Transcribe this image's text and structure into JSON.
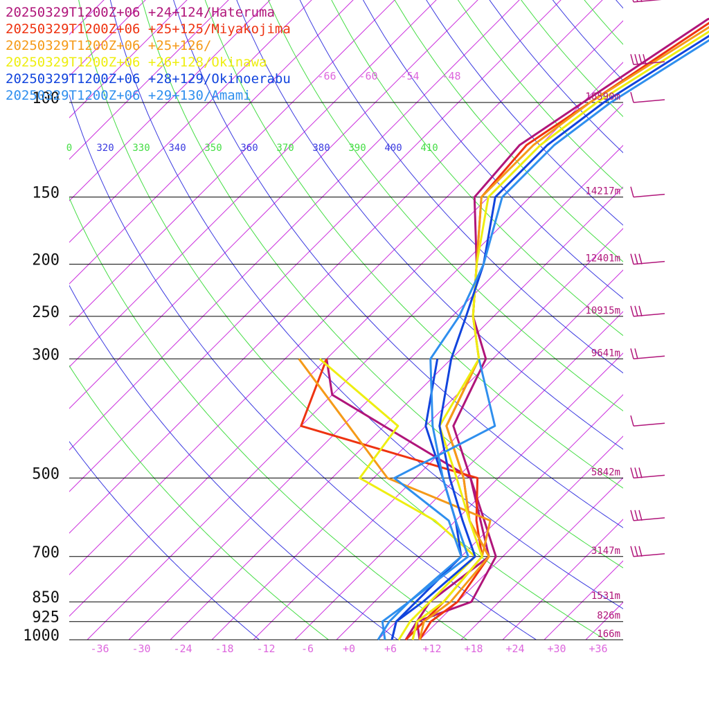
{
  "chart_data": {
    "type": "skew-t log-p sounding",
    "pressure_levels": [
      {
        "p": 100,
        "label": "100",
        "height": "16590m"
      },
      {
        "p": 150,
        "label": "150",
        "height": "14217m"
      },
      {
        "p": 200,
        "label": "200",
        "height": "12401m"
      },
      {
        "p": 250,
        "label": "250",
        "height": "10915m"
      },
      {
        "p": 300,
        "label": "300",
        "height": "9641m"
      },
      {
        "p": 500,
        "label": "500",
        "height": "5842m"
      },
      {
        "p": 700,
        "label": "700",
        "height": "3147m"
      },
      {
        "p": 850,
        "label": "850",
        "height": "1531m"
      },
      {
        "p": 925,
        "label": "925",
        "height": "826m"
      },
      {
        "p": 1000,
        "label": "1000",
        "height": "166m"
      }
    ],
    "temperature_ticks": [
      "-36",
      "-30",
      "-24",
      "-18",
      "-12",
      "-6",
      "+0",
      "+6",
      "+12",
      "+18",
      "+24",
      "+30",
      "+36"
    ],
    "upper_ticks": [
      "-66",
      "-60",
      "-54",
      "-48"
    ],
    "theta_labels": [
      "0",
      "320",
      "330",
      "340",
      "350",
      "360",
      "370",
      "380",
      "390",
      "400",
      "410"
    ],
    "series": [
      {
        "name": "20250329T1200Z+06 +24+124/Hateruma",
        "color": "#b0157a",
        "temperature": [
          [
            50,
            -17
          ],
          [
            70,
            -38
          ],
          [
            100,
            -44
          ],
          [
            120,
            -47
          ],
          [
            150,
            -46
          ],
          [
            200,
            -36
          ],
          [
            250,
            -29
          ],
          [
            300,
            -21
          ],
          [
            400,
            -16
          ],
          [
            500,
            -6
          ],
          [
            700,
            9
          ],
          [
            850,
            12
          ],
          [
            925,
            7
          ],
          [
            1000,
            10
          ]
        ],
        "dewpoint": [
          [
            300,
            -44
          ],
          [
            350,
            -38
          ],
          [
            500,
            -6
          ],
          [
            700,
            8
          ],
          [
            850,
            6
          ],
          [
            925,
            7
          ],
          [
            1000,
            8
          ]
        ]
      },
      {
        "name": "20250329T1200Z+06 +25+125/Miyakojima",
        "color": "#ee3311",
        "temperature": [
          [
            50,
            -18
          ],
          [
            70,
            -37
          ],
          [
            100,
            -43
          ],
          [
            120,
            -46
          ],
          [
            150,
            -45
          ],
          [
            200,
            -36
          ],
          [
            250,
            -29
          ],
          [
            300,
            -22
          ],
          [
            400,
            -17
          ],
          [
            500,
            -7
          ],
          [
            600,
            0
          ],
          [
            700,
            8
          ],
          [
            850,
            10
          ],
          [
            925,
            9
          ],
          [
            1000,
            10
          ]
        ],
        "dewpoint": [
          [
            300,
            -44
          ],
          [
            400,
            -38
          ],
          [
            500,
            -5
          ],
          [
            600,
            1
          ],
          [
            700,
            7
          ],
          [
            850,
            8
          ],
          [
            925,
            8
          ],
          [
            1000,
            8
          ]
        ]
      },
      {
        "name": "20250329T1200Z+06 +25+126/",
        "color": "#f59a18",
        "temperature": [
          [
            50,
            -19
          ],
          [
            70,
            -36
          ],
          [
            100,
            -43
          ],
          [
            120,
            -45
          ],
          [
            150,
            -45
          ],
          [
            200,
            -36
          ],
          [
            250,
            -29
          ],
          [
            300,
            -22
          ],
          [
            400,
            -17
          ],
          [
            500,
            -7
          ],
          [
            600,
            0
          ],
          [
            700,
            8
          ],
          [
            850,
            9
          ],
          [
            925,
            8
          ],
          [
            1000,
            10
          ]
        ],
        "dewpoint": [
          [
            300,
            -48
          ],
          [
            500,
            -18
          ],
          [
            600,
            3
          ],
          [
            700,
            7
          ],
          [
            850,
            8
          ],
          [
            925,
            7
          ],
          [
            1000,
            9
          ]
        ]
      },
      {
        "name": "20250329T1200Z+06 +26+128/Okinawa",
        "color": "#eeee11",
        "temperature": [
          [
            50,
            -20
          ],
          [
            70,
            -35
          ],
          [
            100,
            -42
          ],
          [
            120,
            -44
          ],
          [
            150,
            -44
          ],
          [
            200,
            -36
          ],
          [
            250,
            -29
          ],
          [
            300,
            -22
          ],
          [
            400,
            -18
          ],
          [
            500,
            -8
          ],
          [
            600,
            0
          ],
          [
            700,
            7
          ],
          [
            850,
            8
          ],
          [
            925,
            7
          ],
          [
            1000,
            9
          ]
        ],
        "dewpoint": [
          [
            300,
            -45
          ],
          [
            400,
            -24
          ],
          [
            500,
            -22
          ],
          [
            600,
            -5
          ],
          [
            700,
            6
          ],
          [
            850,
            6
          ],
          [
            925,
            6
          ],
          [
            1000,
            7
          ]
        ]
      },
      {
        "name": "20250329T1200Z+06 +28+129/Okinoerabu",
        "color": "#1144dd",
        "temperature": [
          [
            50,
            -21
          ],
          [
            70,
            -34
          ],
          [
            100,
            -41
          ],
          [
            120,
            -43
          ],
          [
            150,
            -43
          ],
          [
            200,
            -35
          ],
          [
            250,
            -30
          ],
          [
            300,
            -26
          ],
          [
            400,
            -18
          ],
          [
            500,
            -9
          ],
          [
            600,
            -1
          ],
          [
            700,
            6
          ],
          [
            850,
            5
          ],
          [
            925,
            4
          ],
          [
            1000,
            6
          ]
        ],
        "dewpoint": [
          [
            300,
            -28
          ],
          [
            400,
            -20
          ],
          [
            500,
            -10
          ],
          [
            600,
            -2
          ],
          [
            700,
            4
          ],
          [
            850,
            4
          ],
          [
            925,
            4
          ],
          [
            1000,
            6
          ]
        ]
      },
      {
        "name": "20250329T1200Z+06 +29+130/Amami",
        "color": "#2f8fee",
        "temperature": [
          [
            50,
            -22
          ],
          [
            70,
            -33
          ],
          [
            100,
            -40
          ],
          [
            120,
            -42
          ],
          [
            150,
            -42
          ],
          [
            200,
            -35
          ],
          [
            250,
            -31
          ],
          [
            300,
            -29
          ],
          [
            400,
            -19
          ],
          [
            500,
            -10
          ],
          [
            600,
            -2
          ],
          [
            700,
            5
          ],
          [
            850,
            3
          ],
          [
            925,
            2
          ],
          [
            1000,
            5
          ]
        ],
        "dewpoint": [
          [
            300,
            -22
          ],
          [
            400,
            -10
          ],
          [
            500,
            -17
          ],
          [
            600,
            -3
          ],
          [
            700,
            4
          ],
          [
            850,
            3
          ],
          [
            925,
            3
          ],
          [
            1000,
            4
          ]
        ]
      }
    ],
    "wind_barbs": [
      {
        "p": 65,
        "speed": 25,
        "color": "#b0157a"
      },
      {
        "p": 85,
        "speed": 35,
        "color": "#b0157a"
      },
      {
        "p": 100,
        "speed": 10,
        "color": "#b0157a"
      },
      {
        "p": 150,
        "speed": 10,
        "color": "#b0157a"
      },
      {
        "p": 200,
        "speed": 30,
        "color": "#b0157a"
      },
      {
        "p": 250,
        "speed": 30,
        "color": "#b0157a"
      },
      {
        "p": 300,
        "speed": 15,
        "color": "#b0157a"
      },
      {
        "p": 400,
        "speed": 10,
        "color": "#b0157a"
      },
      {
        "p": 500,
        "speed": 25,
        "color": "#b0157a"
      },
      {
        "p": 600,
        "speed": 25,
        "color": "#b0157a"
      },
      {
        "p": 700,
        "speed": 30,
        "color": "#b0157a"
      }
    ]
  }
}
